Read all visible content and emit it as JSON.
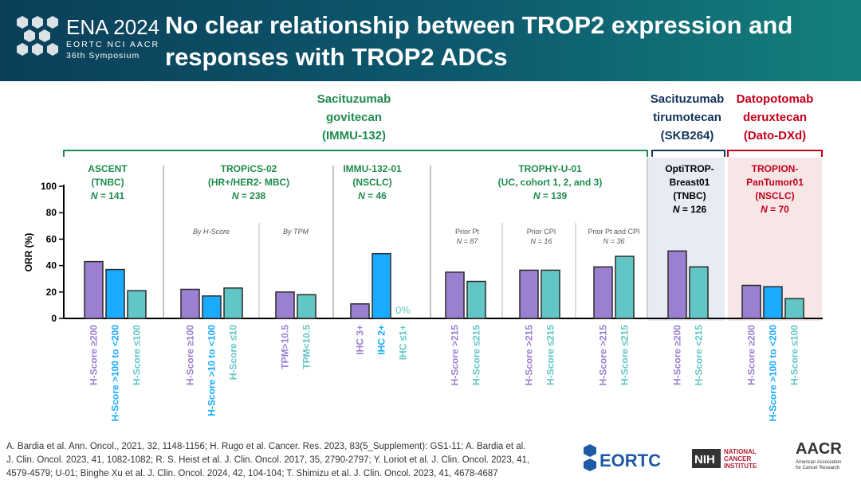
{
  "header": {
    "brand_title": "ENA 2024",
    "brand_subtitle": "EORTC NCI AACR",
    "brand_symposium": "36th Symposium",
    "title": "No clear relationship between TROP2 expression and responses with TROP2 ADCs"
  },
  "colors": {
    "purple": "#9b7fd1",
    "blue": "#1aaaff",
    "teal": "#63c6c6",
    "green": "#1e8c4e",
    "navy": "#13335c",
    "red": "#c3001b"
  },
  "drugs": [
    {
      "name": "Sacituzumab govitecan (IMMU-132)",
      "lines": [
        "Sacituzumab",
        "govitecan",
        "(IMMU-132)"
      ],
      "color": "#1e8c4e"
    },
    {
      "name": "Sacituzumab tirumotecan (SKB264)",
      "lines": [
        "Sacituzumab",
        "tirumotecan",
        "(SKB264)"
      ],
      "color": "#13335c"
    },
    {
      "name": "Datopotomab deruxtecan (Dato-DXd)",
      "lines": [
        "Datopotomab",
        "deruxtecan",
        "(Dato-DXd)"
      ],
      "color": "#c3001b"
    }
  ],
  "trials": [
    {
      "lines": [
        "ASCENT",
        "(TNBC)",
        "N = 141"
      ],
      "color": "#1e8c4e"
    },
    {
      "lines": [
        "TROPiCS-02",
        "(HR+/HER2- MBC)",
        "N = 238"
      ],
      "color": "#1e8c4e"
    },
    {
      "lines": [
        "IMMU-132-01",
        "(NSCLC)",
        "N = 46"
      ],
      "color": "#1e8c4e"
    },
    {
      "lines": [
        "TROPHY-U-01",
        "(UC, cohort 1, 2, and 3)",
        "N = 139"
      ],
      "color": "#1e8c4e"
    },
    {
      "lines": [
        "OptiTROP-",
        "Breast01",
        "(TNBC)",
        "N = 126"
      ],
      "color": "#000000"
    },
    {
      "lines": [
        "TROPION-",
        "PanTumor01",
        "(NSCLC)",
        "N = 70"
      ],
      "color": "#c3001b"
    }
  ],
  "subgroups": [
    {
      "lines": [
        "By H-Score"
      ]
    },
    {
      "lines": [
        "By TPM"
      ]
    },
    {
      "lines": [
        "Prior Pt",
        "N = 87"
      ]
    },
    {
      "lines": [
        "Prior CPI",
        "N = 16"
      ]
    },
    {
      "lines": [
        "Prior Pt  and CPI",
        "N = 36"
      ]
    }
  ],
  "chart_data": {
    "type": "bar",
    "ylabel": "ORR (%)",
    "ylim": [
      0,
      100
    ],
    "yticks": [
      0,
      20,
      40,
      60,
      80,
      100
    ],
    "grid": false,
    "bars": [
      {
        "label": "H-Score ≥200",
        "value": 43,
        "color": "purple"
      },
      {
        "label": "H-Score >100 to <200",
        "value": 37,
        "color": "blue"
      },
      {
        "label": "H-Score ≤100",
        "value": 21,
        "color": "teal"
      },
      {
        "label": "H-Score ≥100",
        "value": 22,
        "color": "purple"
      },
      {
        "label": "H-Score >10 to <100",
        "value": 17,
        "color": "blue"
      },
      {
        "label": "H-Score ≤10",
        "value": 23,
        "color": "teal"
      },
      {
        "label": "TPM>10.5",
        "value": 20,
        "color": "purple"
      },
      {
        "label": "TPM<10.5",
        "value": 18,
        "color": "teal"
      },
      {
        "label": "IHC 3+",
        "value": 11,
        "color": "purple"
      },
      {
        "label": "IHC 2+",
        "value": 49,
        "color": "blue"
      },
      {
        "label": "IHC ≤1+",
        "value": 0,
        "color": "teal",
        "value_label": "0%"
      },
      {
        "label": "H-Score >215",
        "value": 35,
        "color": "purple"
      },
      {
        "label": "H-Score ≤215",
        "value": 28,
        "color": "teal"
      },
      {
        "label": "H-Score >215",
        "value": 36.5,
        "color": "purple"
      },
      {
        "label": "H-Score ≤215",
        "value": 36.5,
        "color": "teal"
      },
      {
        "label": "H-Score >215",
        "value": 39,
        "color": "purple"
      },
      {
        "label": "H-Score ≤215",
        "value": 47,
        "color": "teal"
      },
      {
        "label": "H-Score ≥200",
        "value": 51,
        "color": "purple"
      },
      {
        "label": "H-Score <215",
        "value": 39,
        "color": "teal"
      },
      {
        "label": "H-Score ≥200",
        "value": 25,
        "color": "purple"
      },
      {
        "label": "H-Score >100 to <200",
        "value": 24,
        "color": "blue"
      },
      {
        "label": "H-Score ≤100",
        "value": 15,
        "color": "teal"
      }
    ]
  },
  "references": [
    "A. Bardia et al. Ann. Oncol., 2021, 32, 1148-1156; H. Rugo et al. Cancer. Res. 2023, 83(5_Supplement): GS1-11; A. Bardia et al.",
    "J. Clin. Oncol. 2023, 41, 1082-1082; R. S. Heist et al. J. Clin. Oncol. 2017, 35, 2790-2797; Y. Loriot et al. J. Clin. Oncol. 2023, 41,",
    "4579-4579; U-01; Binghe Xu et al. J. Clin. Oncol. 2024, 42, 104-104; T. Shimizu et al. J. Clin. Oncol. 2023, 41, 4678-4687"
  ],
  "logos": {
    "eortc": "EORTC",
    "nih": "NIH",
    "nci": [
      "NATIONAL",
      "CANCER",
      "INSTITUTE"
    ],
    "aacr": "AACR",
    "aacr_sub": [
      "American Association",
      "for Cancer Research"
    ]
  }
}
